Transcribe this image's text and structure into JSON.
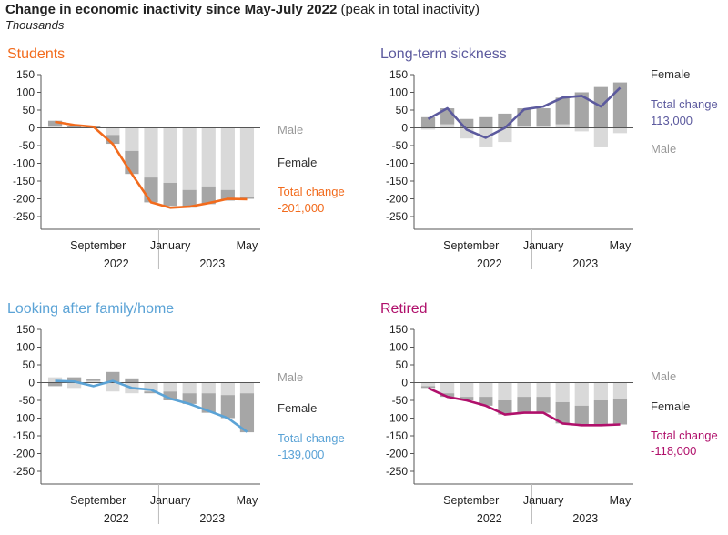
{
  "page": {
    "title_bold": "Change in economic inactivity since May-July 2022",
    "title_rest": " (peak in total inactivity)",
    "subtitle": "Thousands"
  },
  "colors": {
    "male_bar": "#d9d9d9",
    "female_bar": "#a6a6a6",
    "axis": "#555555",
    "label_gray": "#999999",
    "label_dark": "#333333"
  },
  "chart_data": [
    {
      "type": "bar",
      "title": "Students",
      "color": "#f26b1d",
      "categories": [
        "Jul 2022",
        "Aug 2022",
        "Sep 2022",
        "Oct 2022",
        "Nov 2022",
        "Dec 2022",
        "Jan 2023",
        "Feb 2023",
        "Mar 2023",
        "Apr 2023",
        "May 2023"
      ],
      "ylim": [
        -250,
        150
      ],
      "yticks": [
        150,
        100,
        50,
        0,
        -50,
        -100,
        -150,
        -200,
        -250
      ],
      "xticks": [
        {
          "index": 2,
          "label": "September"
        },
        {
          "index": 6,
          "label": "January"
        },
        {
          "index": 10,
          "label": "May"
        }
      ],
      "years": [
        {
          "index": 3,
          "label": "2022"
        },
        {
          "index": 8,
          "label": "2023"
        }
      ],
      "series": [
        {
          "name": "Male",
          "kind": "bar",
          "values": [
            5,
            0,
            0,
            -20,
            -65,
            -140,
            -155,
            -175,
            -165,
            -175,
            -195
          ]
        },
        {
          "name": "Female",
          "kind": "bar",
          "values": [
            15,
            5,
            5,
            -25,
            -65,
            -70,
            -65,
            -50,
            -50,
            -30,
            -5
          ]
        },
        {
          "name": "Total change",
          "kind": "line",
          "values": [
            17,
            8,
            3,
            -45,
            -130,
            -210,
            -225,
            -222,
            -212,
            -200,
            -201
          ]
        }
      ],
      "labels": {
        "male": "Male",
        "female": "Female",
        "total_name": "Total change",
        "total_value": "-201,000"
      }
    },
    {
      "type": "bar",
      "title": "Long-term sickness",
      "color": "#5c5a9e",
      "categories": [
        "Jul 2022",
        "Aug 2022",
        "Sep 2022",
        "Oct 2022",
        "Nov 2022",
        "Dec 2022",
        "Jan 2023",
        "Feb 2023",
        "Mar 2023",
        "Apr 2023",
        "May 2023"
      ],
      "ylim": [
        -250,
        150
      ],
      "yticks": [
        150,
        100,
        50,
        0,
        -50,
        -100,
        -150,
        -200,
        -250
      ],
      "xticks": [
        {
          "index": 2,
          "label": "September"
        },
        {
          "index": 6,
          "label": "January"
        },
        {
          "index": 10,
          "label": "May"
        }
      ],
      "years": [
        {
          "index": 3,
          "label": "2022"
        },
        {
          "index": 8,
          "label": "2023"
        }
      ],
      "series": [
        {
          "name": "Male",
          "kind": "bar",
          "values": [
            -5,
            10,
            -30,
            -55,
            -40,
            5,
            5,
            10,
            -10,
            -55,
            -15
          ]
        },
        {
          "name": "Female",
          "kind": "bar",
          "values": [
            30,
            45,
            25,
            30,
            40,
            50,
            50,
            75,
            100,
            115,
            128
          ]
        },
        {
          "name": "Total change",
          "kind": "line",
          "values": [
            25,
            55,
            -5,
            -28,
            0,
            52,
            60,
            85,
            90,
            60,
            113
          ]
        }
      ],
      "labels": {
        "male": "Male",
        "female": "Female",
        "total_name": "Total change",
        "total_value": "113,000"
      }
    },
    {
      "type": "bar",
      "title": "Looking after family/home",
      "color": "#5ba3d6",
      "categories": [
        "Jul 2022",
        "Aug 2022",
        "Sep 2022",
        "Oct 2022",
        "Nov 2022",
        "Dec 2022",
        "Jan 2023",
        "Feb 2023",
        "Mar 2023",
        "Apr 2023",
        "May 2023"
      ],
      "ylim": [
        -250,
        150
      ],
      "yticks": [
        150,
        100,
        50,
        0,
        -50,
        -100,
        -150,
        -200,
        -250
      ],
      "xticks": [
        {
          "index": 2,
          "label": "September"
        },
        {
          "index": 6,
          "label": "January"
        },
        {
          "index": 10,
          "label": "May"
        }
      ],
      "years": [
        {
          "index": 3,
          "label": "2022"
        },
        {
          "index": 8,
          "label": "2023"
        }
      ],
      "series": [
        {
          "name": "Male",
          "kind": "bar",
          "values": [
            15,
            -15,
            5,
            -25,
            -30,
            -25,
            -25,
            -30,
            -30,
            -35,
            -30
          ]
        },
        {
          "name": "Female",
          "kind": "bar",
          "values": [
            -10,
            15,
            5,
            30,
            12,
            -5,
            -25,
            -30,
            -55,
            -65,
            -110
          ]
        },
        {
          "name": "Total change",
          "kind": "line",
          "values": [
            5,
            3,
            -10,
            5,
            -15,
            -20,
            -45,
            -60,
            -80,
            -100,
            -139
          ]
        }
      ],
      "labels": {
        "male": "Male",
        "female": "Female",
        "total_name": "Total change",
        "total_value": "-139,000"
      }
    },
    {
      "type": "bar",
      "title": "Retired",
      "color": "#b0106b",
      "categories": [
        "Jul 2022",
        "Aug 2022",
        "Sep 2022",
        "Oct 2022",
        "Nov 2022",
        "Dec 2022",
        "Jan 2023",
        "Feb 2023",
        "Mar 2023",
        "Apr 2023",
        "May 2023"
      ],
      "ylim": [
        -250,
        150
      ],
      "yticks": [
        150,
        100,
        50,
        0,
        -50,
        -100,
        -150,
        -200,
        -250
      ],
      "xticks": [
        {
          "index": 2,
          "label": "September"
        },
        {
          "index": 6,
          "label": "January"
        },
        {
          "index": 10,
          "label": "May"
        }
      ],
      "years": [
        {
          "index": 3,
          "label": "2022"
        },
        {
          "index": 8,
          "label": "2023"
        }
      ],
      "series": [
        {
          "name": "Male",
          "kind": "bar",
          "values": [
            -10,
            -30,
            -40,
            -40,
            -50,
            -40,
            -40,
            -55,
            -65,
            -50,
            -45
          ]
        },
        {
          "name": "Female",
          "kind": "bar",
          "values": [
            -5,
            -10,
            -10,
            -25,
            -40,
            -45,
            -45,
            -60,
            -55,
            -70,
            -73
          ]
        },
        {
          "name": "Total change",
          "kind": "line",
          "values": [
            -15,
            -40,
            -50,
            -65,
            -90,
            -85,
            -85,
            -115,
            -120,
            -120,
            -118
          ]
        }
      ],
      "labels": {
        "male": "Male",
        "female": "Female",
        "total_name": "Total change",
        "total_value": "-118,000"
      }
    }
  ]
}
